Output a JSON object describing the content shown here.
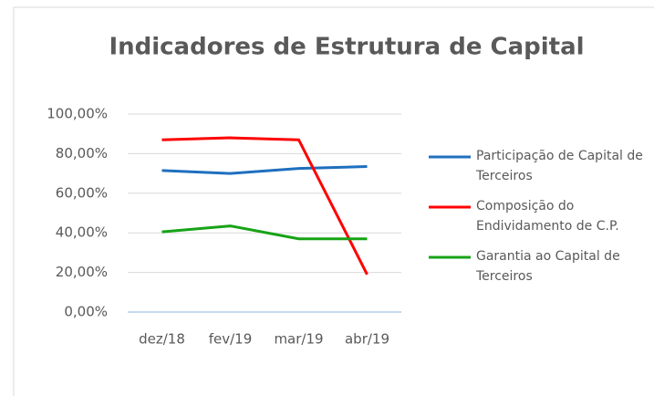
{
  "chart_data": {
    "type": "line",
    "title": "Indicadores de Estrutura de Capital",
    "categories": [
      "dez/18",
      "fev/19",
      "mar/19",
      "abr/19"
    ],
    "series": [
      {
        "name": "Participação de Capital de Terceiros",
        "color": "#1f6fbf",
        "values": [
          71.5,
          70,
          72.5,
          73.5
        ]
      },
      {
        "name": "Composição do Endividamento de C.P.",
        "color": "#ff0000",
        "values": [
          87,
          88,
          87,
          19
        ]
      },
      {
        "name": "Garantia ao Capital de Terceiros",
        "color": "#17a317",
        "values": [
          40.5,
          43.5,
          37,
          37
        ]
      }
    ],
    "ylim": [
      0,
      100
    ],
    "yticks": [
      {
        "value": 0,
        "label": "0,00%"
      },
      {
        "value": 20,
        "label": "20,00%"
      },
      {
        "value": 40,
        "label": "40,00%"
      },
      {
        "value": 60,
        "label": "60,00%"
      },
      {
        "value": 80,
        "label": "80,00%"
      },
      {
        "value": 100,
        "label": "100,00%"
      }
    ],
    "grid": true,
    "legend": "right"
  }
}
